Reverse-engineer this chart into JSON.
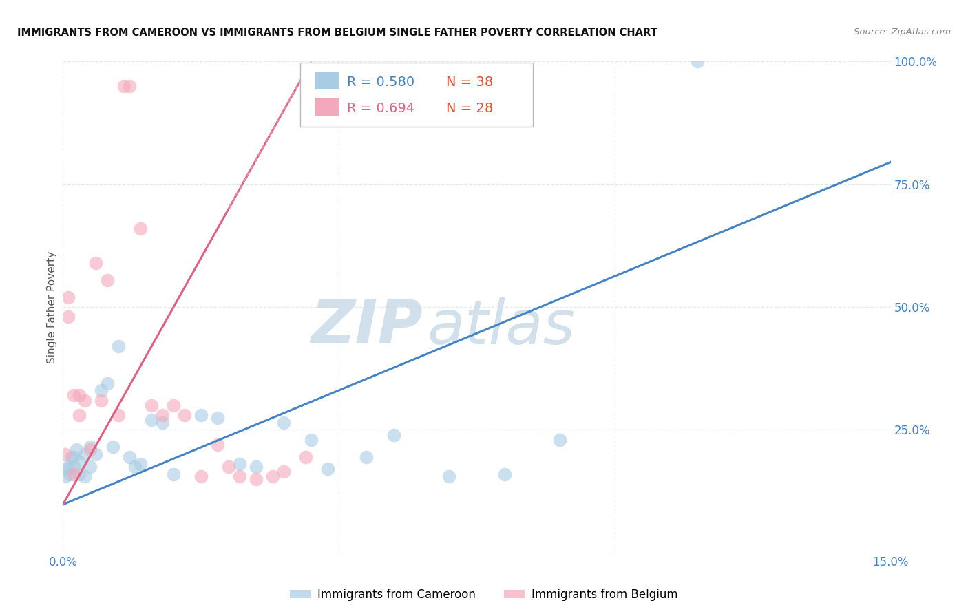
{
  "title": "IMMIGRANTS FROM CAMEROON VS IMMIGRANTS FROM BELGIUM SINGLE FATHER POVERTY CORRELATION CHART",
  "source": "Source: ZipAtlas.com",
  "ylabel": "Single Father Poverty",
  "x_min": 0.0,
  "x_max": 0.15,
  "y_min": 0.0,
  "y_max": 1.0,
  "legend_label1": "Immigrants from Cameroon",
  "legend_label2": "Immigrants from Belgium",
  "R1": 0.58,
  "N1": 38,
  "R2": 0.694,
  "N2": 28,
  "color1": "#a8cce4",
  "color2": "#f4a8bb",
  "line_color1": "#4484c4",
  "line_color2": "#e06080",
  "line_color2_dashed": "#e8a0b0",
  "R_color": "#4484c4",
  "N_color": "#e05030",
  "watermark_text": "ZIPatlas",
  "watermark_color": "#ccdde8",
  "title_color": "#111111",
  "tick_color": "#4484c4",
  "cameroon_x": [
    0.0005,
    0.0008,
    0.001,
    0.0012,
    0.0015,
    0.002,
    0.002,
    0.0025,
    0.003,
    0.003,
    0.004,
    0.004,
    0.005,
    0.005,
    0.006,
    0.007,
    0.008,
    0.009,
    0.01,
    0.012,
    0.013,
    0.014,
    0.016,
    0.018,
    0.02,
    0.025,
    0.028,
    0.032,
    0.035,
    0.04,
    0.045,
    0.048,
    0.055,
    0.06,
    0.07,
    0.08,
    0.09,
    0.115
  ],
  "cameroon_y": [
    0.155,
    0.17,
    0.175,
    0.16,
    0.195,
    0.195,
    0.175,
    0.21,
    0.16,
    0.185,
    0.2,
    0.155,
    0.175,
    0.215,
    0.2,
    0.33,
    0.345,
    0.215,
    0.42,
    0.195,
    0.175,
    0.18,
    0.27,
    0.265,
    0.16,
    0.28,
    0.275,
    0.18,
    0.175,
    0.265,
    0.23,
    0.17,
    0.195,
    0.24,
    0.155,
    0.16,
    0.23,
    1.0
  ],
  "belgium_x": [
    0.0005,
    0.001,
    0.001,
    0.002,
    0.002,
    0.003,
    0.003,
    0.004,
    0.005,
    0.006,
    0.007,
    0.008,
    0.01,
    0.011,
    0.012,
    0.014,
    0.016,
    0.018,
    0.02,
    0.022,
    0.025,
    0.028,
    0.03,
    0.032,
    0.035,
    0.038,
    0.04,
    0.044
  ],
  "belgium_y": [
    0.2,
    0.52,
    0.48,
    0.16,
    0.32,
    0.28,
    0.32,
    0.31,
    0.21,
    0.59,
    0.31,
    0.555,
    0.28,
    0.95,
    0.95,
    0.66,
    0.3,
    0.28,
    0.3,
    0.28,
    0.155,
    0.22,
    0.175,
    0.155,
    0.15,
    0.155,
    0.165,
    0.195
  ],
  "cam_line_x0": 0.0,
  "cam_line_y0": 0.098,
  "cam_line_x1": 0.15,
  "cam_line_y1": 0.795,
  "bel_line_x0": 0.0,
  "bel_line_y0": 0.098,
  "bel_line_x1": 0.045,
  "bel_line_y1": 1.0
}
